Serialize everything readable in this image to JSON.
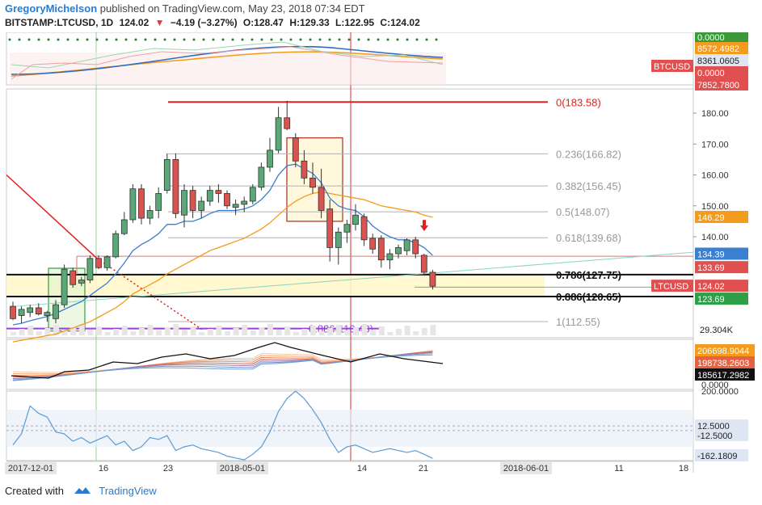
{
  "header": {
    "author": "GregoryMichelson",
    "published": "published on TradingView.com, May 23, 2018 07:34 EDT",
    "symbol": "BITSTAMP:LTCUSD, 1D",
    "last": "124.02",
    "change": "−4.19 (−3.27%)",
    "open": "O:128.47",
    "high": "H:129.33",
    "low": "L:122.95",
    "close": "C:124.02"
  },
  "footer": {
    "created_with": "Created with",
    "brand": "TradingView"
  },
  "colors": {
    "up": "#3d9970",
    "up_fill": "#5aa877",
    "down": "#c0392b",
    "down_fill": "#d9534f",
    "ema_blue": "#3a7fd0",
    "ema_orange": "#f29b1c",
    "fib_red": "#e02020",
    "fib_gray": "#b0b0b0",
    "purple": "#9b3fd6",
    "green": "#32c032"
  },
  "chart_data": {
    "type": "candlestick",
    "pair": "LTCUSD",
    "x_ticks": [
      "2017-12-01",
      "16",
      "23",
      "2018-05-01",
      "14",
      "21",
      "2018-06-01",
      "11",
      "18"
    ],
    "price_axis_ticks": [
      180.0,
      170.0,
      160.0,
      150.0,
      140.0
    ],
    "candles": [
      {
        "o": 117.5,
        "h": 119.0,
        "l": 113.0,
        "c": 113.5
      },
      {
        "o": 114.5,
        "h": 117.5,
        "l": 112.0,
        "c": 116.5
      },
      {
        "o": 115.5,
        "h": 118.0,
        "l": 114.0,
        "c": 117.0
      },
      {
        "o": 117.0,
        "h": 118.5,
        "l": 114.5,
        "c": 115.0
      },
      {
        "o": 114.5,
        "h": 116.0,
        "l": 112.5,
        "c": 115.5
      },
      {
        "o": 113.5,
        "h": 119.5,
        "l": 112.0,
        "c": 118.0
      },
      {
        "o": 118.0,
        "h": 131.0,
        "l": 117.0,
        "c": 129.5
      },
      {
        "o": 129.0,
        "h": 130.0,
        "l": 123.5,
        "c": 124.5
      },
      {
        "o": 125.0,
        "h": 127.0,
        "l": 124.0,
        "c": 126.0
      },
      {
        "o": 126.0,
        "h": 134.0,
        "l": 125.0,
        "c": 133.0
      },
      {
        "o": 133.0,
        "h": 134.0,
        "l": 129.5,
        "c": 130.0
      },
      {
        "o": 130.0,
        "h": 134.0,
        "l": 129.0,
        "c": 133.5
      },
      {
        "o": 133.5,
        "h": 142.0,
        "l": 133.0,
        "c": 141.0
      },
      {
        "o": 141.0,
        "h": 148.0,
        "l": 140.5,
        "c": 145.5
      },
      {
        "o": 145.5,
        "h": 157.0,
        "l": 144.5,
        "c": 155.5
      },
      {
        "o": 155.5,
        "h": 157.0,
        "l": 144.0,
        "c": 146.0
      },
      {
        "o": 146.0,
        "h": 150.0,
        "l": 144.0,
        "c": 148.5
      },
      {
        "o": 148.5,
        "h": 156.0,
        "l": 146.0,
        "c": 154.0
      },
      {
        "o": 155.0,
        "h": 167.0,
        "l": 154.0,
        "c": 165.0
      },
      {
        "o": 165.0,
        "h": 167.0,
        "l": 146.0,
        "c": 147.5
      },
      {
        "o": 147.0,
        "h": 157.0,
        "l": 143.0,
        "c": 155.0
      },
      {
        "o": 155.0,
        "h": 156.5,
        "l": 146.0,
        "c": 148.5
      },
      {
        "o": 148.5,
        "h": 153.0,
        "l": 146.0,
        "c": 151.5
      },
      {
        "o": 151.5,
        "h": 156.5,
        "l": 150.0,
        "c": 155.0
      },
      {
        "o": 155.0,
        "h": 157.0,
        "l": 151.0,
        "c": 154.0
      },
      {
        "o": 154.0,
        "h": 155.0,
        "l": 149.0,
        "c": 150.0
      },
      {
        "o": 149.5,
        "h": 152.0,
        "l": 147.0,
        "c": 150.5
      },
      {
        "o": 150.5,
        "h": 153.0,
        "l": 148.0,
        "c": 151.5
      },
      {
        "o": 151.5,
        "h": 157.0,
        "l": 150.5,
        "c": 156.0
      },
      {
        "o": 156.0,
        "h": 164.0,
        "l": 155.0,
        "c": 162.5
      },
      {
        "o": 162.5,
        "h": 172.0,
        "l": 161.0,
        "c": 168.0
      },
      {
        "o": 168.0,
        "h": 182.0,
        "l": 167.0,
        "c": 178.5
      },
      {
        "o": 178.5,
        "h": 184.0,
        "l": 174.5,
        "c": 175.0
      },
      {
        "o": 172.0,
        "h": 173.5,
        "l": 162.5,
        "c": 164.5
      },
      {
        "o": 164.5,
        "h": 168.0,
        "l": 157.0,
        "c": 159.0
      },
      {
        "o": 159.0,
        "h": 164.0,
        "l": 154.0,
        "c": 156.0
      },
      {
        "o": 156.0,
        "h": 162.0,
        "l": 146.0,
        "c": 148.5
      },
      {
        "o": 149.0,
        "h": 152.0,
        "l": 132.0,
        "c": 136.5
      },
      {
        "o": 136.5,
        "h": 143.0,
        "l": 131.0,
        "c": 141.5
      },
      {
        "o": 141.5,
        "h": 145.5,
        "l": 138.0,
        "c": 144.0
      },
      {
        "o": 144.0,
        "h": 150.5,
        "l": 142.0,
        "c": 147.0
      },
      {
        "o": 146.5,
        "h": 147.5,
        "l": 137.0,
        "c": 139.0
      },
      {
        "o": 139.5,
        "h": 141.0,
        "l": 134.5,
        "c": 136.0
      },
      {
        "o": 139.5,
        "h": 140.5,
        "l": 130.0,
        "c": 132.5
      },
      {
        "o": 132.5,
        "h": 136.0,
        "l": 129.5,
        "c": 134.5
      },
      {
        "o": 134.5,
        "h": 137.5,
        "l": 133.0,
        "c": 136.5
      },
      {
        "o": 135.5,
        "h": 139.5,
        "l": 134.0,
        "c": 139.0
      },
      {
        "o": 139.0,
        "h": 140.0,
        "l": 133.0,
        "c": 134.5
      },
      {
        "o": 134.0,
        "h": 134.5,
        "l": 128.0,
        "c": 128.5
      },
      {
        "o": 128.5,
        "h": 129.3,
        "l": 122.95,
        "c": 124.0
      }
    ],
    "ema_short": [
      111.5,
      112.0,
      112.8,
      113.5,
      114.2,
      115.2,
      116.5,
      117.8,
      119.0,
      121.0,
      123.0,
      125.0,
      128.0,
      131.5,
      135.5,
      137.5,
      139.0,
      141.0,
      144.0,
      144.0,
      145.0,
      145.0,
      146.0,
      147.5,
      148.5,
      148.5,
      148.5,
      149.0,
      150.0,
      152.0,
      155.0,
      160.0,
      163.0,
      163.5,
      162.0,
      160.5,
      157.5,
      152.5,
      150.0,
      149.0,
      148.5,
      146.5,
      143.5,
      141.5,
      140.0,
      139.0,
      139.0,
      138.0,
      136.5,
      134.0
    ],
    "ema_long": [
      106.0,
      106.5,
      107.0,
      107.5,
      108.0,
      108.5,
      109.5,
      110.5,
      111.5,
      112.5,
      114.0,
      115.5,
      117.0,
      119.0,
      121.5,
      123.0,
      124.5,
      126.0,
      128.0,
      129.5,
      131.0,
      132.5,
      134.0,
      135.5,
      136.5,
      137.5,
      138.5,
      139.5,
      141.0,
      142.5,
      144.5,
      147.0,
      149.5,
      151.5,
      153.0,
      154.0,
      154.5,
      154.0,
      153.5,
      153.0,
      152.5,
      152.0,
      151.0,
      150.0,
      149.5,
      149.0,
      148.5,
      148.0,
      147.0,
      146.3
    ],
    "ema_short_label": "134.39",
    "ema_long_label": "146.29",
    "price_labels": {
      "last": "LTCUSD",
      "last_value": "124.02",
      "red_line": "133.69",
      "green_line": "123.69",
      "volume": "29.304K"
    },
    "fib_levels": [
      {
        "ratio": "0",
        "value": 183.58,
        "label": "0(183.58)"
      },
      {
        "ratio": "0.236",
        "value": 166.82,
        "label": "0.236(166.82)"
      },
      {
        "ratio": "0.382",
        "value": 156.45,
        "label": "0.382(156.45)"
      },
      {
        "ratio": "0.5",
        "value": 148.07,
        "label": "0.5(148.07)"
      },
      {
        "ratio": "0.618",
        "value": 139.68,
        "label": "0.618(139.68)"
      },
      {
        "ratio": "0.786",
        "value": 127.75,
        "label": "0.786(127.75)"
      },
      {
        "ratio": "0.886",
        "value": 120.65,
        "label": "0.886(120.65)"
      },
      {
        "ratio": "1",
        "value": 112.55,
        "label": "1(112.55)"
      }
    ],
    "purple_fib_label": "0.886(110.43)",
    "top_panel": {
      "labels": [
        "0.0000",
        "8572.4982",
        "8361.0605",
        "BTCUSD",
        "0.0000",
        "7852.7800"
      ]
    },
    "ribbon_panel": {
      "labels": [
        "206698.9044",
        "198738.2603",
        "185617.2982",
        "0.0000"
      ]
    },
    "cci_panel": {
      "ticks": [
        "200.0000",
        "12.5000",
        "-12.5000",
        "-162.1809"
      ],
      "values": [
        -90,
        -30,
        120,
        80,
        60,
        -20,
        -30,
        -70,
        -50,
        -80,
        -60,
        -40,
        -90,
        -70,
        -120,
        -100,
        -50,
        -60,
        -40,
        -120,
        -100,
        -90,
        -110,
        -120,
        -130,
        -150,
        -160,
        -170,
        -140,
        -100,
        -20,
        90,
        160,
        200,
        160,
        100,
        30,
        -60,
        -130,
        -100,
        -90,
        -110,
        -130,
        -120,
        -110,
        -120,
        -130,
        -120,
        -140,
        -162
      ]
    }
  }
}
